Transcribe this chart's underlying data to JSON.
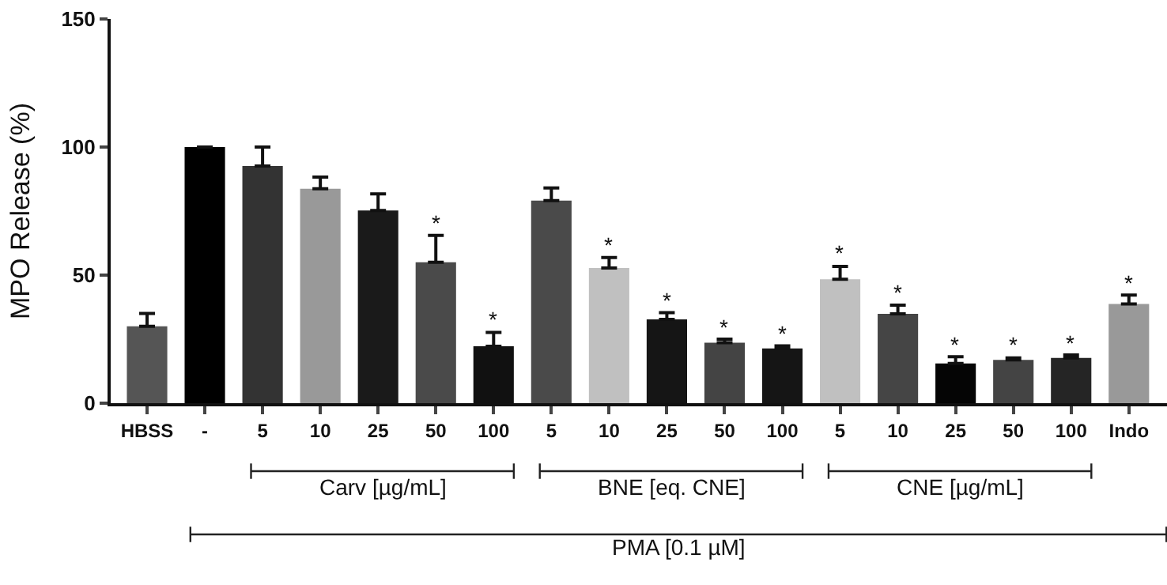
{
  "chart_data": {
    "type": "bar",
    "ylabel": "MPO Release (%)",
    "categories": [
      "HBSS",
      "-",
      "5",
      "10",
      "25",
      "50",
      "100",
      "5",
      "10",
      "25",
      "50",
      "100",
      "5",
      "10",
      "25",
      "50",
      "100",
      "Indo"
    ],
    "values": [
      30,
      100,
      92.6,
      83.7,
      75.2,
      55,
      22.2,
      79.1,
      52.8,
      32.7,
      23.6,
      21.4,
      48.4,
      34.9,
      15.5,
      16.9,
      17.7,
      38.7
    ],
    "errors": [
      [
        30,
        35
      ],
      null,
      [
        92.6,
        100
      ],
      [
        83.7,
        88.3
      ],
      [
        75.2,
        81.7
      ],
      [
        55,
        65.5
      ],
      [
        22.2,
        27.6
      ],
      [
        79.1,
        84
      ],
      [
        52.8,
        56.9
      ],
      [
        32.7,
        35.3
      ],
      [
        23.6,
        25
      ],
      [
        21.4,
        22.4
      ],
      [
        48.4,
        53.4
      ],
      [
        34.9,
        38.3
      ],
      [
        15.5,
        18.1
      ],
      [
        16.9,
        17.7
      ],
      [
        17.7,
        18.8
      ],
      [
        38.7,
        42.2
      ]
    ],
    "colors": [
      "#555555",
      "#000000",
      "#333333",
      "#999999",
      "#1a1a1a",
      "#4a4a4a",
      "#111111",
      "#4a4a4a",
      "#c0c0c0",
      "#151515",
      "#444444",
      "#151515",
      "#c0c0c0",
      "#454545",
      "#050505",
      "#444444",
      "#252525",
      "#999999"
    ],
    "value_labels": [
      null,
      null,
      null,
      null,
      null,
      "*",
      "*",
      null,
      "*",
      "*",
      "*",
      "*",
      "*",
      "*",
      "*",
      "*",
      "*",
      "*"
    ],
    "annotations": [
      "Carv [µg/mL]",
      "BNE [eq. CNE]",
      "CNE [µg/mL]",
      "PMA [0.1 µM]"
    ],
    "ylim": [
      0,
      150
    ],
    "yticks": [
      0,
      50,
      100,
      150
    ]
  }
}
